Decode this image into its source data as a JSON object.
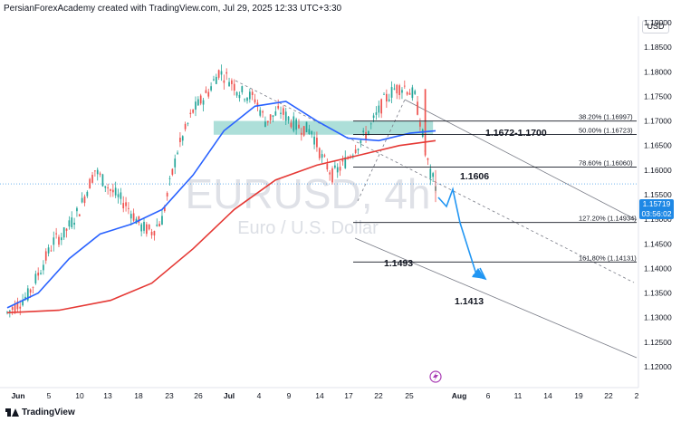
{
  "header": {
    "text": "PersianForexAcademy created with TradingView.com, Jul 29, 2025 12:33 UTC+3:30"
  },
  "currency_button": "USD",
  "footer_logo": "TradingView",
  "watermark": {
    "symbol": "EURUSD, 4h",
    "description": "Euro / U.S. Dollar"
  },
  "price_tag": {
    "price": "1.15719",
    "countdown": "03:56:02"
  },
  "colors": {
    "bull": "#26a69a",
    "bear": "#ef5350",
    "ma_fast": "#2962ff",
    "ma_slow": "#e53935",
    "zone": "#9fd9d2",
    "arrow": "#2196f3",
    "accent_tag": "#1e88e5"
  },
  "chart_data": {
    "type": "candlestick",
    "y_axis": {
      "ylim": [
        1.116,
        1.196
      ],
      "ticks": [
        "1.19000",
        "1.18500",
        "1.18000",
        "1.17500",
        "1.17000",
        "1.16500",
        "1.16000",
        "1.15500",
        "1.15000",
        "1.14500",
        "1.14000",
        "1.13500",
        "1.13000",
        "1.12500",
        "1.12000"
      ]
    },
    "x_axis": {
      "ticks": [
        "Jun",
        "5",
        "10",
        "13",
        "18",
        "23",
        "26",
        "Jul",
        "4",
        "9",
        "14",
        "17",
        "22",
        "25",
        "Aug",
        "6",
        "11",
        "14",
        "19",
        "22",
        "2"
      ],
      "bold_ticks": [
        "Jun",
        "Jul",
        "Aug"
      ]
    },
    "path_keypoints": [
      {
        "t": 0,
        "p": 1.131
      },
      {
        "t": 8,
        "p": 1.1345
      },
      {
        "t": 14,
        "p": 1.141
      },
      {
        "t": 18,
        "p": 1.1455
      },
      {
        "t": 22,
        "p": 1.147
      },
      {
        "t": 28,
        "p": 1.152
      },
      {
        "t": 34,
        "p": 1.16
      },
      {
        "t": 40,
        "p": 1.156
      },
      {
        "t": 46,
        "p": 1.153
      },
      {
        "t": 52,
        "p": 1.1485
      },
      {
        "t": 56,
        "p": 1.1475
      },
      {
        "t": 60,
        "p": 1.15
      },
      {
        "t": 66,
        "p": 1.164
      },
      {
        "t": 72,
        "p": 1.172
      },
      {
        "t": 78,
        "p": 1.176
      },
      {
        "t": 82,
        "p": 1.18
      },
      {
        "t": 86,
        "p": 1.1785
      },
      {
        "t": 90,
        "p": 1.176
      },
      {
        "t": 96,
        "p": 1.1745
      },
      {
        "t": 100,
        "p": 1.17
      },
      {
        "t": 106,
        "p": 1.172
      },
      {
        "t": 112,
        "p": 1.169
      },
      {
        "t": 118,
        "p": 1.168
      },
      {
        "t": 122,
        "p": 1.1625
      },
      {
        "t": 126,
        "p": 1.159
      },
      {
        "t": 130,
        "p": 1.161
      },
      {
        "t": 134,
        "p": 1.164
      },
      {
        "t": 140,
        "p": 1.168
      },
      {
        "t": 146,
        "p": 1.174
      },
      {
        "t": 150,
        "p": 1.1765
      },
      {
        "t": 154,
        "p": 1.177
      },
      {
        "t": 158,
        "p": 1.175
      },
      {
        "t": 160,
        "p": 1.17
      },
      {
        "t": 162,
        "p": 1.164
      },
      {
        "t": 164,
        "p": 1.159
      },
      {
        "t": 166,
        "p": 1.1572
      }
    ],
    "moving_averages": [
      {
        "color_key": "ma_fast",
        "points": [
          {
            "t": 0,
            "p": 1.132
          },
          {
            "t": 12,
            "p": 1.135
          },
          {
            "t": 24,
            "p": 1.142
          },
          {
            "t": 36,
            "p": 1.147
          },
          {
            "t": 48,
            "p": 1.149
          },
          {
            "t": 60,
            "p": 1.152
          },
          {
            "t": 72,
            "p": 1.159
          },
          {
            "t": 84,
            "p": 1.168
          },
          {
            "t": 96,
            "p": 1.173
          },
          {
            "t": 108,
            "p": 1.174
          },
          {
            "t": 120,
            "p": 1.17
          },
          {
            "t": 132,
            "p": 1.1665
          },
          {
            "t": 144,
            "p": 1.166
          },
          {
            "t": 156,
            "p": 1.1675
          },
          {
            "t": 166,
            "p": 1.168
          }
        ]
      },
      {
        "color_key": "ma_slow",
        "points": [
          {
            "t": 0,
            "p": 1.131
          },
          {
            "t": 20,
            "p": 1.1315
          },
          {
            "t": 40,
            "p": 1.1335
          },
          {
            "t": 56,
            "p": 1.137
          },
          {
            "t": 72,
            "p": 1.144
          },
          {
            "t": 88,
            "p": 1.152
          },
          {
            "t": 104,
            "p": 1.158
          },
          {
            "t": 120,
            "p": 1.161
          },
          {
            "t": 136,
            "p": 1.163
          },
          {
            "t": 152,
            "p": 1.165
          },
          {
            "t": 166,
            "p": 1.166
          }
        ]
      }
    ],
    "zone": {
      "p_low": 1.1672,
      "p_high": 1.17,
      "t_start": 80,
      "t_end": 165,
      "label": "1.1672-1.1700"
    },
    "fib_levels": [
      {
        "label": "38.20% (1.16997)",
        "price": 1.16997
      },
      {
        "label": "50.00% (1.16723)",
        "price": 1.16723
      },
      {
        "label": "78.60% (1.16060)",
        "price": 1.1606
      },
      {
        "label": "127.20% (1.14934)",
        "price": 1.14934
      },
      {
        "label": "161.80% (1.14131)",
        "price": 1.14131
      }
    ],
    "annotations": [
      "1.1606",
      "1.1493",
      "1.1413"
    ]
  }
}
